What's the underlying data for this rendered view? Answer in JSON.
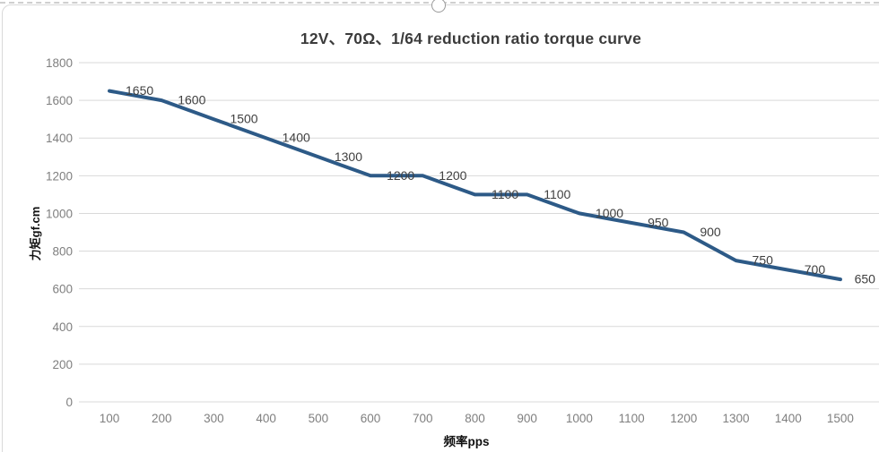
{
  "chart_data": {
    "type": "line",
    "title": "12V、70Ω、1/64 reduction ratio torque curve",
    "xlabel": "频率pps",
    "ylabel": "力矩gf.cm",
    "x": [
      100,
      200,
      300,
      400,
      500,
      600,
      700,
      800,
      900,
      1000,
      1100,
      1200,
      1300,
      1400,
      1500
    ],
    "series": [
      {
        "name": "torque",
        "values": [
          1650,
          1600,
          1500,
          1400,
          1300,
          1200,
          1200,
          1100,
          1100,
          1000,
          950,
          900,
          750,
          700,
          650
        ]
      }
    ],
    "data_labels": [
      1650,
      1600,
      1500,
      1400,
      1300,
      1200,
      1200,
      1100,
      1100,
      1000,
      950,
      900,
      750,
      700,
      650
    ],
    "ylim": [
      0,
      1800
    ],
    "ytick_step": 200,
    "yticks": [
      0,
      200,
      400,
      600,
      800,
      1000,
      1200,
      1400,
      1600,
      1800
    ],
    "grid": true,
    "legend_position": "none",
    "colors": {
      "line": "#2d5a87",
      "grid": "#d9d9d9",
      "tick_text": "#7f7f7f",
      "data_label_text": "#404040",
      "title_text": "#3b3b3b",
      "frame_border": "#d9d9d9",
      "marquee": "#cfcfcf"
    }
  }
}
